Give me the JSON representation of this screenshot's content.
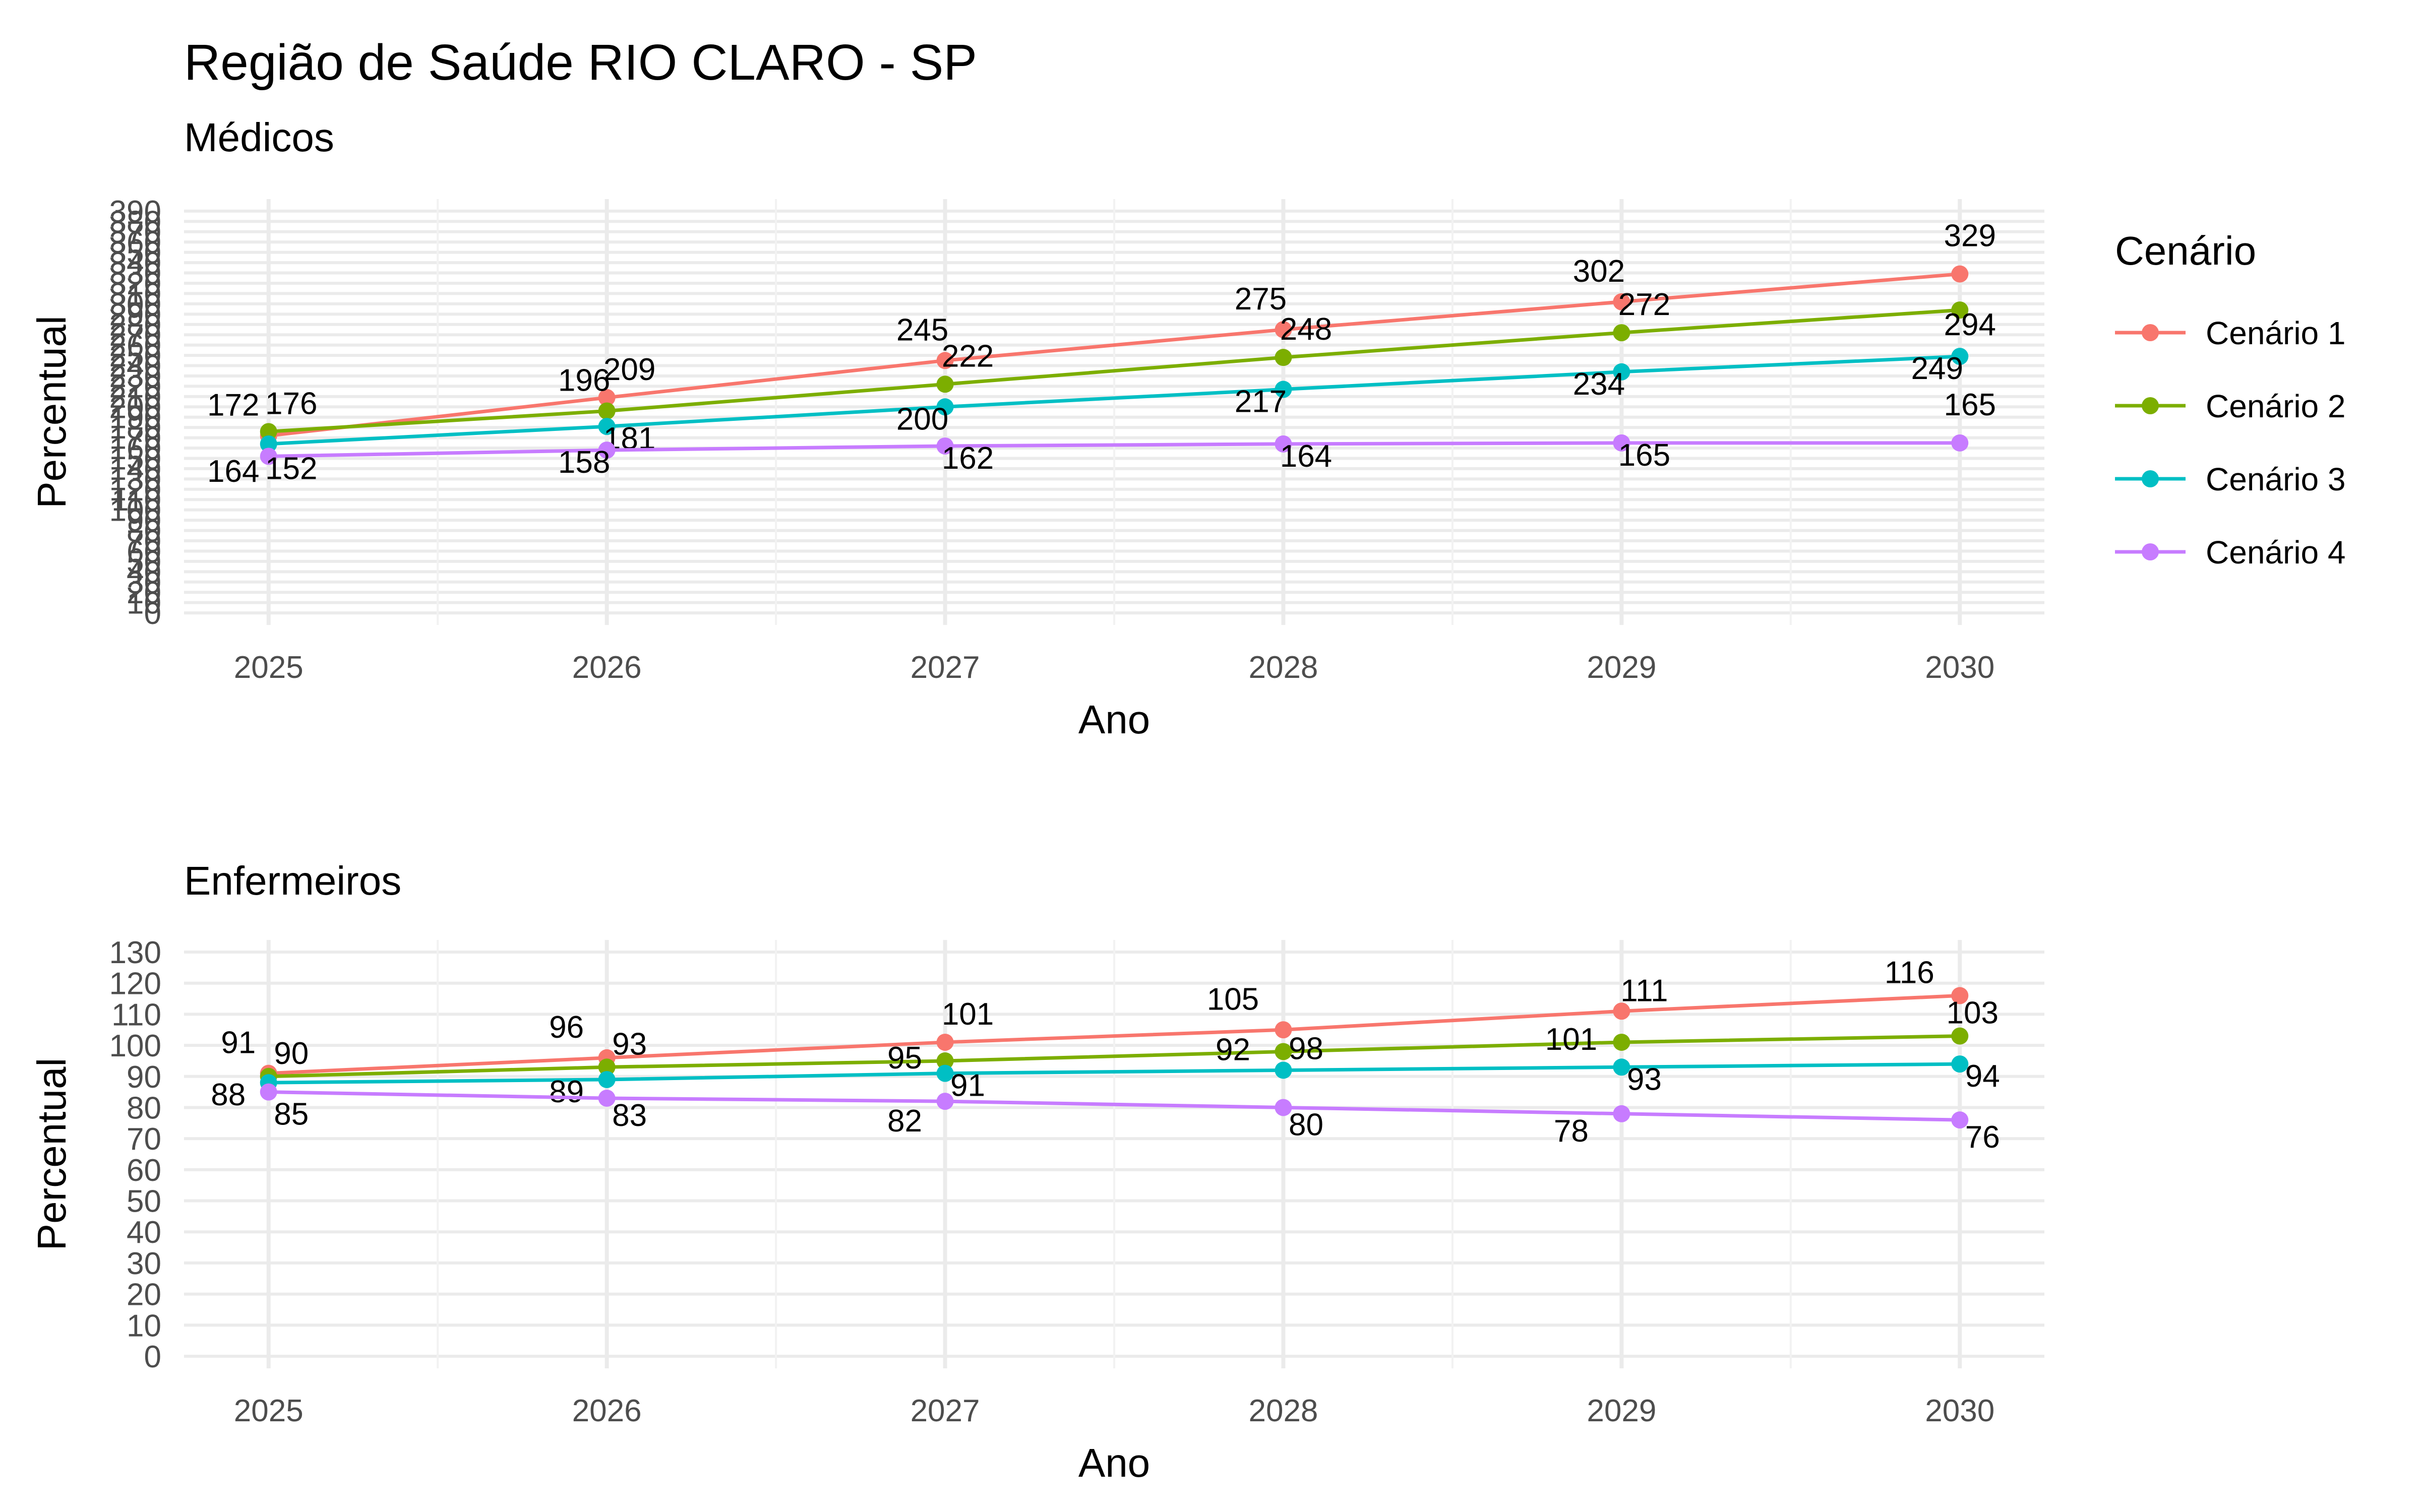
{
  "title": "Região de Saúde RIO CLARO - SP",
  "legend": {
    "title": "Cenário",
    "position": "right",
    "items": [
      {
        "label": "Cenário 1",
        "color": "#F8766D"
      },
      {
        "label": "Cenário 2",
        "color": "#7CAE00"
      },
      {
        "label": "Cenário 3",
        "color": "#00BFC4"
      },
      {
        "label": "Cenário 4",
        "color": "#C77CFF"
      }
    ]
  },
  "chart_data": [
    {
      "type": "line",
      "subtitle": "Médicos",
      "xlabel": "Ano",
      "ylabel": "Percentual",
      "x": [
        2025,
        2026,
        2027,
        2028,
        2029,
        2030
      ],
      "ylim": [
        0,
        390
      ],
      "ytick_step": 10,
      "grid": true,
      "series": [
        {
          "name": "Cenário 1",
          "values": [
            172,
            209,
            245,
            275,
            302,
            329
          ]
        },
        {
          "name": "Cenário 2",
          "values": [
            176,
            196,
            222,
            248,
            272,
            294
          ]
        },
        {
          "name": "Cenário 3",
          "values": [
            164,
            181,
            200,
            217,
            234,
            249
          ]
        },
        {
          "name": "Cenário 4",
          "values": [
            152,
            158,
            162,
            164,
            165,
            165
          ]
        }
      ]
    },
    {
      "type": "line",
      "subtitle": "Enfermeiros",
      "xlabel": "Ano",
      "ylabel": "Percentual",
      "x": [
        2025,
        2026,
        2027,
        2028,
        2029,
        2030
      ],
      "ylim": [
        0,
        130
      ],
      "ytick_step": 10,
      "grid": true,
      "series": [
        {
          "name": "Cenário 1",
          "values": [
            91,
            96,
            101,
            105,
            111,
            116
          ]
        },
        {
          "name": "Cenário 2",
          "values": [
            90,
            93,
            95,
            98,
            101,
            103
          ]
        },
        {
          "name": "Cenário 3",
          "values": [
            88,
            89,
            91,
            92,
            93,
            94
          ]
        },
        {
          "name": "Cenário 4",
          "values": [
            85,
            83,
            82,
            80,
            78,
            76
          ]
        }
      ]
    }
  ]
}
